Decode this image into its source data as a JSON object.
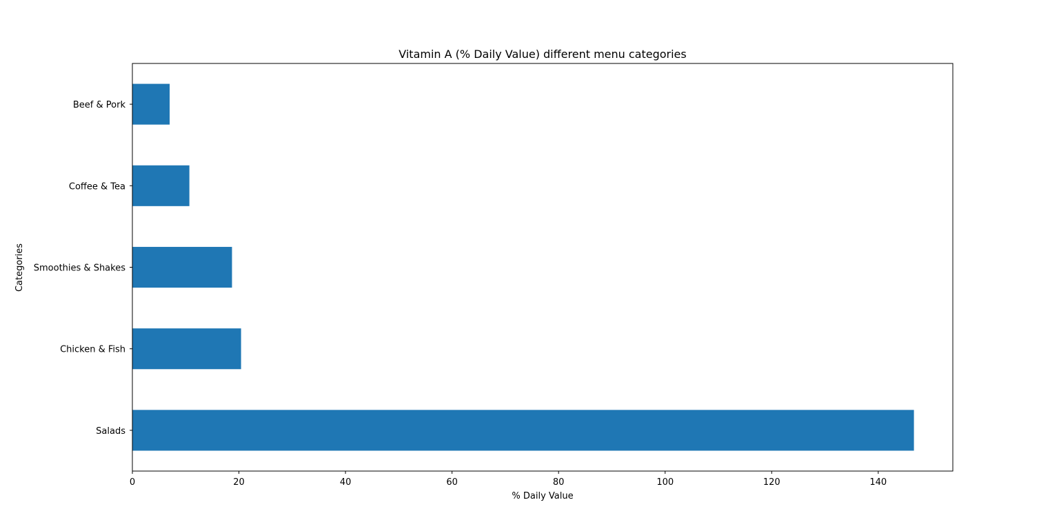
{
  "chart_data": {
    "type": "bar",
    "orientation": "horizontal",
    "title": "Vitamin A (% Daily Value) different menu categories",
    "xlabel": "% Daily Value",
    "ylabel": "Categories",
    "categories": [
      "Salads",
      "Chicken & Fish",
      "Smoothies & Shakes",
      "Coffee & Tea",
      "Beef & Pork"
    ],
    "values": [
      146.7,
      20.4,
      18.7,
      10.7,
      7.0
    ],
    "xlim": [
      0,
      154
    ],
    "xticks": [
      0,
      20,
      40,
      60,
      80,
      100,
      120,
      140
    ],
    "bar_color": "#1f77b4",
    "grid": false,
    "legend": "none"
  }
}
